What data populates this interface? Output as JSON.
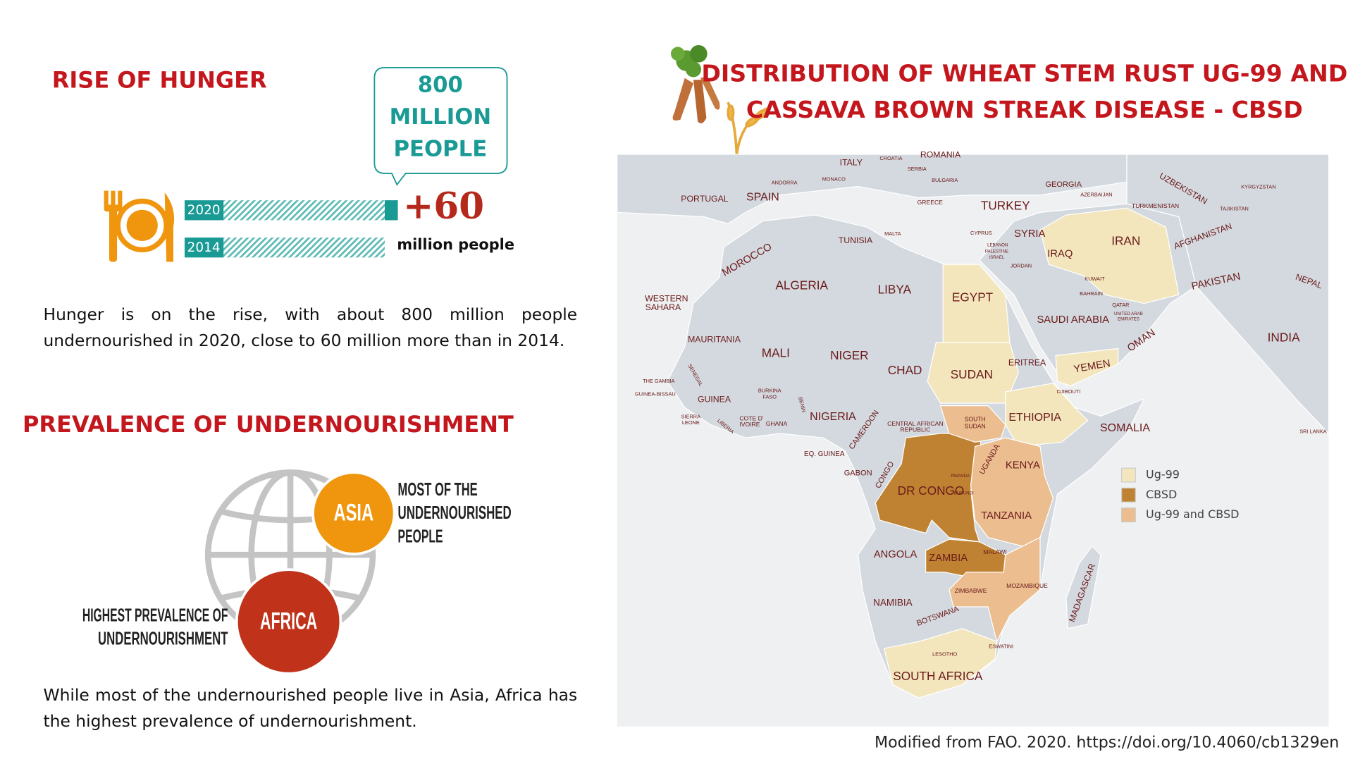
{
  "left": {
    "hunger_title": "RISE OF HUNGER",
    "callout": [
      "800",
      "MILLION",
      "PEOPLE"
    ],
    "bar_chart": {
      "years": [
        "2020",
        "2014"
      ],
      "values": [
        800,
        740
      ],
      "xlim": [
        0,
        800
      ],
      "color": "#1a9a95"
    },
    "increase": "+60",
    "increase_unit": "million people",
    "paragraph1": "Hunger is on the rise, with about 800 million people undernourished in 2020, close to 60 million more than in 2014.",
    "prevalence_title": "PREVALENCE OF UNDERNOURISHMENT",
    "asia": "ASIA",
    "asia_note": [
      "MOST OF THE",
      "UNDERNOURISHED",
      "PEOPLE"
    ],
    "africa": "AFRICA",
    "africa_note": [
      "HIGHEST PREVALENCE OF",
      "UNDERNOURISHMENT"
    ],
    "paragraph2": "While most of the undernourished people live in Asia, Africa has the highest prevalence of undernourishment."
  },
  "right": {
    "title": [
      "DISTRIBUTION OF WHEAT STEM RUST UG-99 AND",
      "CASSAVA BROWN STREAK DISEASE - CBSD"
    ],
    "map_labels": [
      "ROMANIA",
      "ITALY",
      "CROATIA",
      "SERBIA",
      "BULGARIA",
      "ANDORRA",
      "MONACO",
      "GEORGIA",
      "AZERBAIJAN",
      "UZBEKISTAN",
      "KYRGYZSTAN",
      "PORTUGAL",
      "SPAIN",
      "GREECE",
      "TURKEY",
      "TURKMENISTAN",
      "TAJIKISTAN",
      "MALTA",
      "TUNISIA",
      "CYPRUS",
      "SYRIA",
      "IRAN",
      "AFGHANISTAN",
      "LEBANON",
      "PALESTINE",
      "ISRAEL",
      "IRAQ",
      "MOROCCO",
      "JORDAN",
      "KUWAIT",
      "PAKISTAN",
      "NEPAL",
      "ALGERIA",
      "LIBYA",
      "BAHRAIN",
      "WESTERN",
      "SAHARA",
      "EGYPT",
      "QATAR",
      "UNITED ARAB",
      "EMIRATES",
      "SAUDI ARABIA",
      "OMAN",
      "INDIA",
      "MAURITANIA",
      "MALI",
      "NIGER",
      "YEMEN",
      "ERITREA",
      "CHAD",
      "SUDAN",
      "SENEGAL",
      "THE GAMBIA",
      "GUINEA-BISSAU",
      "BURKINA",
      "FASO",
      "BENIN",
      "GUINEA",
      "DJIBOUTI",
      "NIGERIA",
      "ETHIOPIA",
      "SIERRA",
      "LEONE",
      "COTE D'",
      "IVOIRE",
      "GHANA",
      "LIBERIA",
      "CENTRAL AFRICAN",
      "REPUBLIC",
      "SOUTH",
      "SUDAN",
      "SOMALIA",
      "SRI LANKA",
      "CAMEROON",
      "EQ. GUINEA",
      "UGANDA",
      "KENYA",
      "GABON",
      "RWANDA",
      "CONGO",
      "DR CONGO",
      "BURUNDI",
      "TANZANIA",
      "ANGOLA",
      "MALAWI",
      "ZAMBIA",
      "MADAGASCAR",
      "MOZAMBIQUE",
      "ZIMBABWE",
      "NAMIBIA",
      "BOTSWANA",
      "ESWATINI",
      "LESOTHO",
      "SOUTH AFRICA"
    ],
    "legend": [
      {
        "name": "Ug-99",
        "color": "#f3e6bd"
      },
      {
        "name": "CBSD",
        "color": "#bf8232"
      },
      {
        "name": "Ug-99 and CBSD",
        "color": "#ebbd8f"
      }
    ],
    "source": "Modified from FAO. 2020. https://doi.org/10.4060/cb1329en"
  }
}
